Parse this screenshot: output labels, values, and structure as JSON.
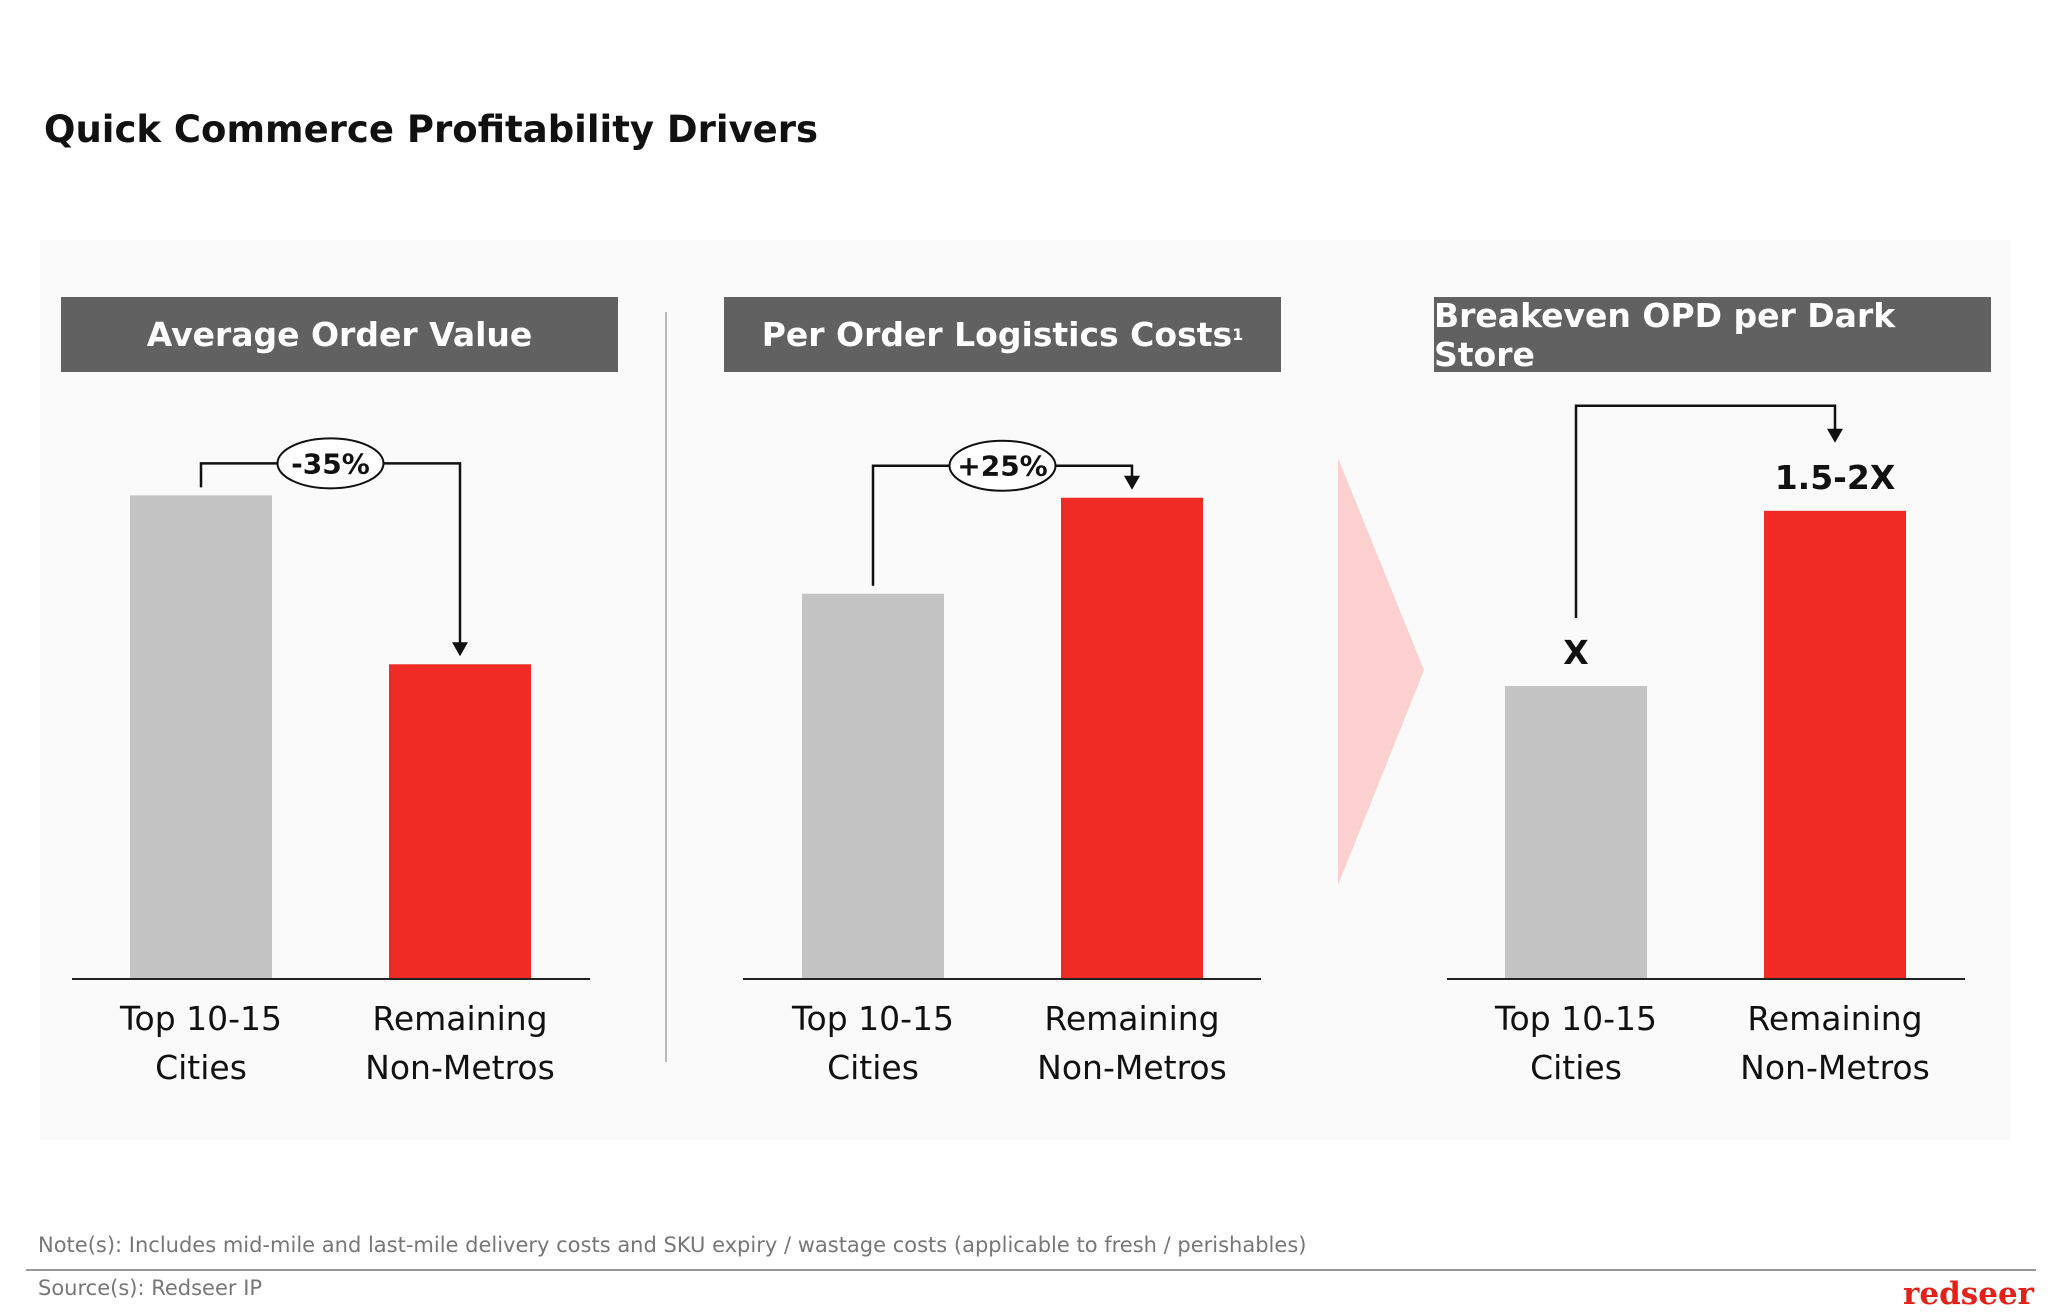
{
  "header": {
    "title": "Quick Commerce Profitability Drivers"
  },
  "chart_data": [
    {
      "type": "bar",
      "title": "Average Order Value",
      "categories": [
        "Top 10-15 Cities",
        "Remaining Non-Metros"
      ],
      "values": [
        100,
        65
      ],
      "colors": [
        "#c4c4c4",
        "#f02b25"
      ],
      "ylim": [
        0,
        121
      ],
      "annotation": "-35%"
    },
    {
      "type": "bar",
      "title": "Per Order Logistics Costs",
      "title_superscript": "1",
      "categories": [
        "Top 10-15 Cities",
        "Remaining Non-Metros"
      ],
      "values": [
        100,
        125
      ],
      "colors": [
        "#c4c4c4",
        "#f02b25"
      ],
      "ylim": [
        0,
        152
      ],
      "annotation": "+25%"
    },
    {
      "type": "bar",
      "title": "Breakeven OPD per Dark Store",
      "categories": [
        "Top 10-15 Cities",
        "Remaining Non-Metros"
      ],
      "values": [
        1,
        1.6
      ],
      "value_labels": [
        "X",
        "1.5-2X"
      ],
      "colors": [
        "#c4c4c4",
        "#f02b25"
      ],
      "ylim": [
        0,
        2
      ]
    }
  ],
  "footer": {
    "note": "Note(s): Includes mid-mile and last-mile delivery costs and SKU expiry / wastage costs (applicable to fresh / perishables)",
    "source": "Source(s): Redseer IP",
    "logo": "redseer"
  }
}
